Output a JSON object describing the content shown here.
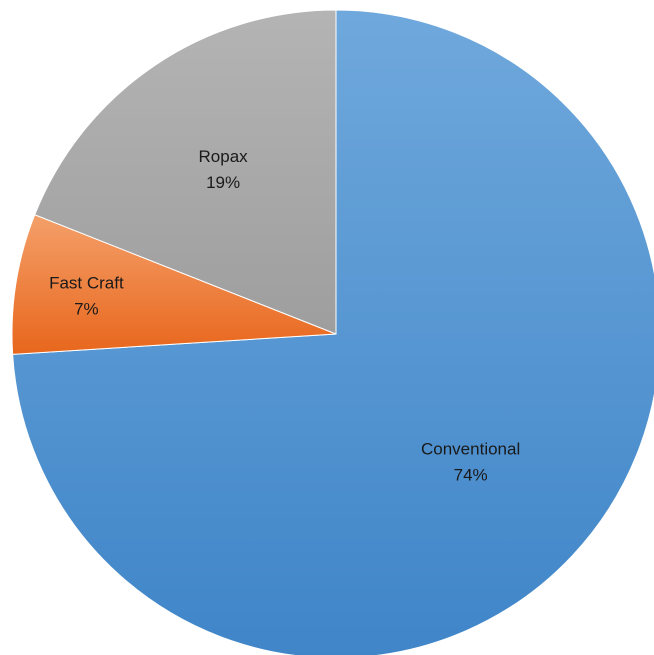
{
  "chart_data": {
    "type": "pie",
    "title": "",
    "start_angle_deg": 0,
    "direction": "clockwise",
    "slices": [
      {
        "label": "Conventional",
        "value": 74,
        "percent_label": "74%",
        "color": "#5b9bd5"
      },
      {
        "label": "Fast Craft",
        "value": 7,
        "percent_label": "7%",
        "color": "#ed7d31"
      },
      {
        "label": "Ropax",
        "value": 19,
        "percent_label": "19%",
        "color": "#a5a5a5"
      }
    ]
  }
}
